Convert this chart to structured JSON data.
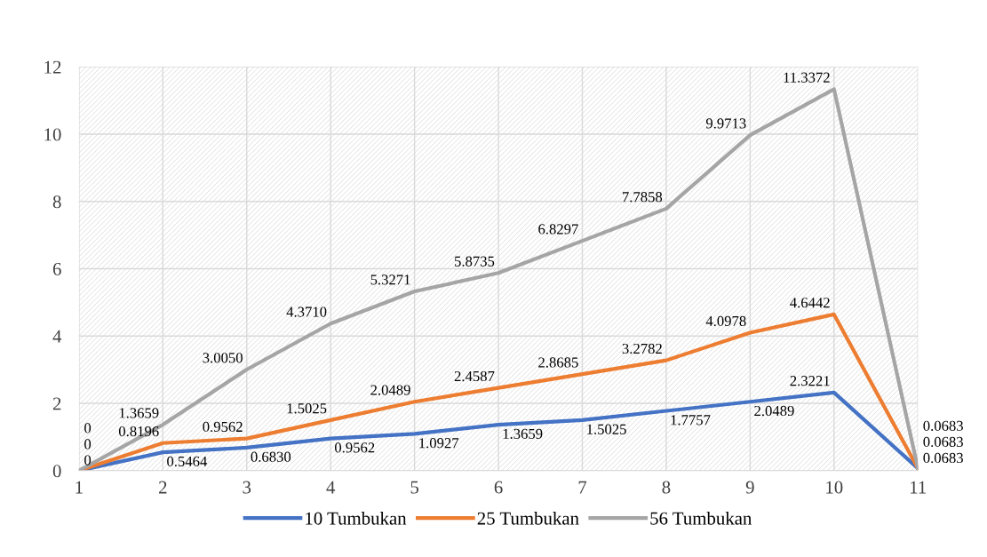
{
  "chart_data": {
    "type": "line",
    "categories": [
      "1",
      "2",
      "3",
      "4",
      "5",
      "6",
      "7",
      "8",
      "9",
      "10",
      "11"
    ],
    "series": [
      {
        "name": "10 Tumbukan",
        "color": "#4472c4",
        "values": [
          0,
          0.5464,
          0.683,
          0.9562,
          1.0927,
          1.3659,
          1.5025,
          1.7757,
          2.0489,
          2.3221,
          0.0683
        ],
        "value_labels": [
          "0",
          "0.5464",
          "0.6830",
          "0.9562",
          "1.0927",
          "1.3659",
          "1.5025",
          "1.7757",
          "2.0489",
          "2.3221",
          "0.0683"
        ]
      },
      {
        "name": "25 Tumbukan",
        "color": "#ed7d31",
        "values": [
          0,
          0.8196,
          0.9562,
          1.5025,
          2.0489,
          2.4587,
          2.8685,
          3.2782,
          4.0978,
          4.6442,
          0.0683
        ],
        "value_labels": [
          "0",
          "0.8196",
          "0.9562",
          "1.5025",
          "2.0489",
          "2.4587",
          "2.8685",
          "3.2782",
          "4.0978",
          "4.6442",
          "0.0683"
        ]
      },
      {
        "name": "56 Tumbukan",
        "color": "#a5a5a5",
        "values": [
          0,
          1.3659,
          3.005,
          4.371,
          5.3271,
          5.8735,
          6.8297,
          7.7858,
          9.9713,
          11.3372,
          0.0683
        ],
        "value_labels": [
          "0",
          "1.3659",
          "3.0050",
          "4.3710",
          "5.3271",
          "5.8735",
          "6.8297",
          "7.7858",
          "9.9713",
          "11.3372",
          "0.0683"
        ]
      }
    ],
    "ylim": [
      0,
      12
    ],
    "yticks": [
      0,
      2,
      4,
      6,
      8,
      10,
      12
    ],
    "grid": true,
    "legend": "bottom",
    "marker": "none",
    "line_style": "solid"
  }
}
